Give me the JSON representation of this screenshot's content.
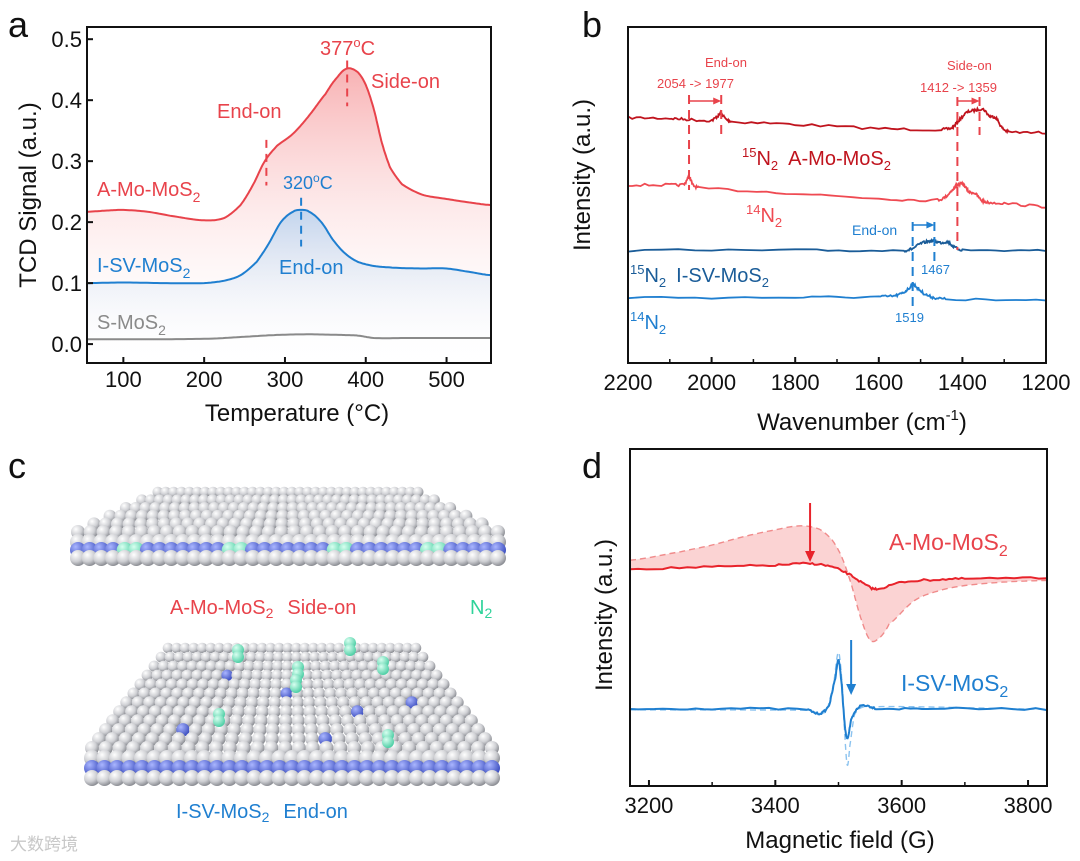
{
  "colors": {
    "red": "#e8434b",
    "dark_red": "#c0141e",
    "pink_fill": "#f7b5b5",
    "blue": "#1f7fd0",
    "dark_blue": "#1a5c98",
    "gray": "#8a8a8a",
    "green": "#2fd39a",
    "slab_blue": "#5b6fd6",
    "sphere": "#d4d4d8"
  },
  "watermark": "大数跨境",
  "chart_data": [
    {
      "panel": "a",
      "type": "line",
      "xlabel": "Temperature (°C)",
      "xlabel_parts": {
        "pre": "Temperature (",
        "sup": "o",
        "post": "C)"
      },
      "ylabel": "TCD Signal (a.u.)",
      "xlim": [
        55,
        555
      ],
      "ylim": [
        -0.031,
        0.52
      ],
      "xticks": [
        "100",
        "200",
        "300",
        "400",
        "500"
      ],
      "xtick_values": [
        100,
        200,
        300,
        400,
        500
      ],
      "yticks": [
        "0.0",
        "0.1",
        "0.2",
        "0.3",
        "0.4",
        "0.5"
      ],
      "ytick_values": [
        0,
        0.1,
        0.2,
        0.3,
        0.4,
        0.5
      ],
      "series": [
        {
          "name": "A-Mo-MoS2",
          "label_main": "A-Mo-MoS",
          "label_sub": "2",
          "color": "#e8434b",
          "x": [
            55,
            80,
            100,
            130,
            160,
            200,
            225,
            245,
            260,
            275,
            290,
            310,
            330,
            350,
            365,
            377,
            390,
            400,
            410,
            420,
            430,
            445,
            470,
            500,
            530,
            555
          ],
          "y": [
            0.217,
            0.219,
            0.22,
            0.217,
            0.21,
            0.203,
            0.207,
            0.228,
            0.26,
            0.3,
            0.325,
            0.345,
            0.375,
            0.41,
            0.438,
            0.452,
            0.446,
            0.425,
            0.385,
            0.33,
            0.29,
            0.262,
            0.245,
            0.238,
            0.232,
            0.228
          ]
        },
        {
          "name": "I-SV-MoS2",
          "label_main": "I-SV-MoS",
          "label_sub": "2",
          "color": "#1f7fd0",
          "x": [
            55,
            100,
            150,
            200,
            225,
            245,
            265,
            280,
            295,
            310,
            320,
            330,
            345,
            360,
            375,
            390,
            410,
            440,
            470,
            500,
            530,
            555
          ],
          "y": [
            0.1,
            0.101,
            0.1,
            0.1,
            0.104,
            0.113,
            0.135,
            0.165,
            0.2,
            0.217,
            0.22,
            0.217,
            0.2,
            0.17,
            0.148,
            0.135,
            0.128,
            0.125,
            0.124,
            0.124,
            0.118,
            0.113
          ]
        },
        {
          "name": "S-MoS2",
          "label_main": "S-MoS",
          "label_sub": "2",
          "color": "#8a8a8a",
          "x": [
            55,
            150,
            210,
            250,
            290,
            330,
            370,
            390,
            410,
            450,
            555
          ],
          "y": [
            0.008,
            0.008,
            0.009,
            0.012,
            0.015,
            0.016,
            0.015,
            0.014,
            0.01,
            0.01,
            0.01
          ]
        }
      ],
      "annotations": [
        {
          "text_main": "377",
          "text_sup": "o",
          "text_post": "C",
          "x": 377,
          "color": "#e8434b"
        },
        {
          "text": "Side-on",
          "color": "#e8434b"
        },
        {
          "text": "End-on",
          "x": 277,
          "color": "#e8434b"
        },
        {
          "text_main": "320",
          "text_sup": "o",
          "text_post": "C",
          "x": 320,
          "color": "#1f7fd0"
        },
        {
          "text": "End-on",
          "color": "#1f7fd0"
        }
      ]
    },
    {
      "panel": "b",
      "type": "line",
      "xlabel": "Wavenumber (cm-1)",
      "xlabel_parts": {
        "pre": "Wavenumber (cm",
        "sup": "-1",
        "post": ")"
      },
      "ylabel": "Intensity (a.u.)",
      "xlim": [
        2200,
        1200
      ],
      "ylim": [
        0,
        10
      ],
      "xticks": [
        "2200",
        "2000",
        "1800",
        "1600",
        "1400",
        "1200"
      ],
      "xtick_values": [
        2200,
        2000,
        1800,
        1600,
        1400,
        1200
      ],
      "series": [
        {
          "name": "15N2 A-Mo-MoS2",
          "color": "#c0141e",
          "x": [
            2200,
            2100,
            2060,
            2000,
            1985,
            1977,
            1965,
            1950,
            1800,
            1600,
            1450,
            1425,
            1410,
            1390,
            1370,
            1350,
            1335,
            1320,
            1305,
            1290,
            1200
          ],
          "y": [
            7.3,
            7.28,
            7.25,
            7.22,
            7.35,
            7.42,
            7.25,
            7.18,
            7.1,
            6.98,
            6.95,
            7.0,
            7.2,
            7.45,
            7.52,
            7.55,
            7.35,
            7.3,
            7.0,
            6.88,
            6.85
          ]
        },
        {
          "name": "14N2 A-Mo-MoS2",
          "color": "#ef4a52",
          "x": [
            2200,
            2100,
            2065,
            2054,
            2045,
            2030,
            1800,
            1600,
            1460,
            1440,
            1420,
            1412,
            1398,
            1385,
            1370,
            1355,
            1340,
            1300,
            1200
          ],
          "y": [
            5.3,
            5.3,
            5.32,
            5.55,
            5.3,
            5.2,
            5.05,
            4.9,
            4.85,
            4.95,
            5.2,
            5.3,
            5.32,
            5.1,
            5.05,
            4.85,
            4.78,
            4.75,
            4.65
          ]
        },
        {
          "name": "15N2 I-SV-MoS2",
          "color": "#1a5c98",
          "x": [
            2200,
            1800,
            1540,
            1520,
            1500,
            1480,
            1467,
            1450,
            1435,
            1420,
            1400,
            1200
          ],
          "y": [
            3.35,
            3.35,
            3.35,
            3.4,
            3.55,
            3.62,
            3.62,
            3.58,
            3.6,
            3.45,
            3.36,
            3.35
          ]
        },
        {
          "name": "14N2 I-SV-MoS2",
          "color": "#1f7fd0",
          "x": [
            2200,
            1800,
            1600,
            1560,
            1540,
            1525,
            1519,
            1505,
            1490,
            1470,
            1440,
            1200
          ],
          "y": [
            1.95,
            1.95,
            1.97,
            2.0,
            2.1,
            2.25,
            2.35,
            2.2,
            2.05,
            1.95,
            1.9,
            1.85
          ]
        }
      ],
      "labels": {
        "a_end_on": "End-on",
        "a_end_shift": "2054 -> 1977",
        "a_side_on": "Side-on",
        "a_side_shift": "1412 -> 1359",
        "iso15": "15",
        "iso14": "14",
        "n": "N",
        "sub2": "2",
        "a_mo": "A-Mo-MoS",
        "i_sv": "I-SV-MoS",
        "i_end_on": "End-on",
        "p1467": "1467",
        "p1519": "1519"
      },
      "markers": [
        2054,
        1977,
        1412,
        1359,
        1519,
        1467
      ]
    },
    {
      "panel": "d",
      "type": "line",
      "xlabel": "Magnetic field (G)",
      "ylabel": "Intensity (a.u.)",
      "xlim": [
        3170,
        3830
      ],
      "ylim": [
        0,
        10
      ],
      "xticks": [
        "3200",
        "3400",
        "3600",
        "3800"
      ],
      "xtick_values": [
        3200,
        3400,
        3600,
        3800
      ],
      "minor_ticks": [
        3300,
        3500,
        3700
      ],
      "series": [
        {
          "name": "A-Mo-MoS2",
          "style": "solid",
          "color": "#e8232b",
          "x": [
            3170,
            3300,
            3400,
            3455,
            3490,
            3520,
            3545,
            3560,
            3600,
            3650,
            3700,
            3830
          ],
          "y": [
            6.44,
            6.5,
            6.55,
            6.6,
            6.5,
            6.25,
            5.95,
            5.85,
            6.05,
            6.12,
            6.15,
            6.17
          ]
        },
        {
          "name": "A-Mo-MoS2 reference",
          "style": "dashed",
          "fill": true,
          "color": "#f08b8b",
          "x": [
            3170,
            3250,
            3300,
            3350,
            3400,
            3440,
            3470,
            3490,
            3505,
            3520,
            3535,
            3550,
            3565,
            3580,
            3620,
            3660,
            3700,
            3760,
            3830
          ],
          "y": [
            6.7,
            6.95,
            7.15,
            7.4,
            7.6,
            7.72,
            7.62,
            7.3,
            6.8,
            6.0,
            5.0,
            4.33,
            4.4,
            4.8,
            5.5,
            5.8,
            5.95,
            6.05,
            6.1
          ]
        },
        {
          "name": "I-SV-MoS2",
          "style": "solid",
          "color": "#1f7fd0",
          "x": [
            3170,
            3300,
            3450,
            3470,
            3485,
            3495,
            3500,
            3505,
            3510,
            3514,
            3520,
            3530,
            3540,
            3560,
            3650,
            3830
          ],
          "y": [
            2.28,
            2.3,
            2.27,
            2.15,
            2.4,
            3.2,
            3.74,
            3.0,
            1.8,
            1.42,
            1.95,
            2.3,
            2.4,
            2.3,
            2.3,
            2.28
          ]
        },
        {
          "name": "I-SV-MoS2 reference",
          "style": "dashed",
          "color": "#8cc3ef",
          "x": [
            3170,
            3450,
            3480,
            3492,
            3500,
            3506,
            3510,
            3514,
            3518,
            3525,
            3540,
            3830
          ],
          "y": [
            2.26,
            2.25,
            2.2,
            3.0,
            3.97,
            3.0,
            1.5,
            0.62,
            1.2,
            2.1,
            2.35,
            2.28
          ]
        }
      ],
      "arrows": [
        {
          "x": 3455,
          "color": "#e8232b"
        },
        {
          "x": 3520,
          "color": "#1f7fd0"
        }
      ],
      "labels": {
        "a_mo": "A-Mo-MoS",
        "i_sv": "I-SV-MoS",
        "sub2": "2"
      }
    }
  ],
  "panel_c": {
    "top_caption": {
      "sample_main": "A-Mo-MoS",
      "sample_sub": "2",
      "mode": "Side-on",
      "n2_main": "N",
      "n2_sub": "2"
    },
    "bottom_caption": {
      "sample_main": "I-SV-MoS",
      "sample_sub": "2",
      "mode": "End-on"
    }
  },
  "panel_letters": {
    "a": "a",
    "b": "b",
    "c": "c",
    "d": "d"
  }
}
